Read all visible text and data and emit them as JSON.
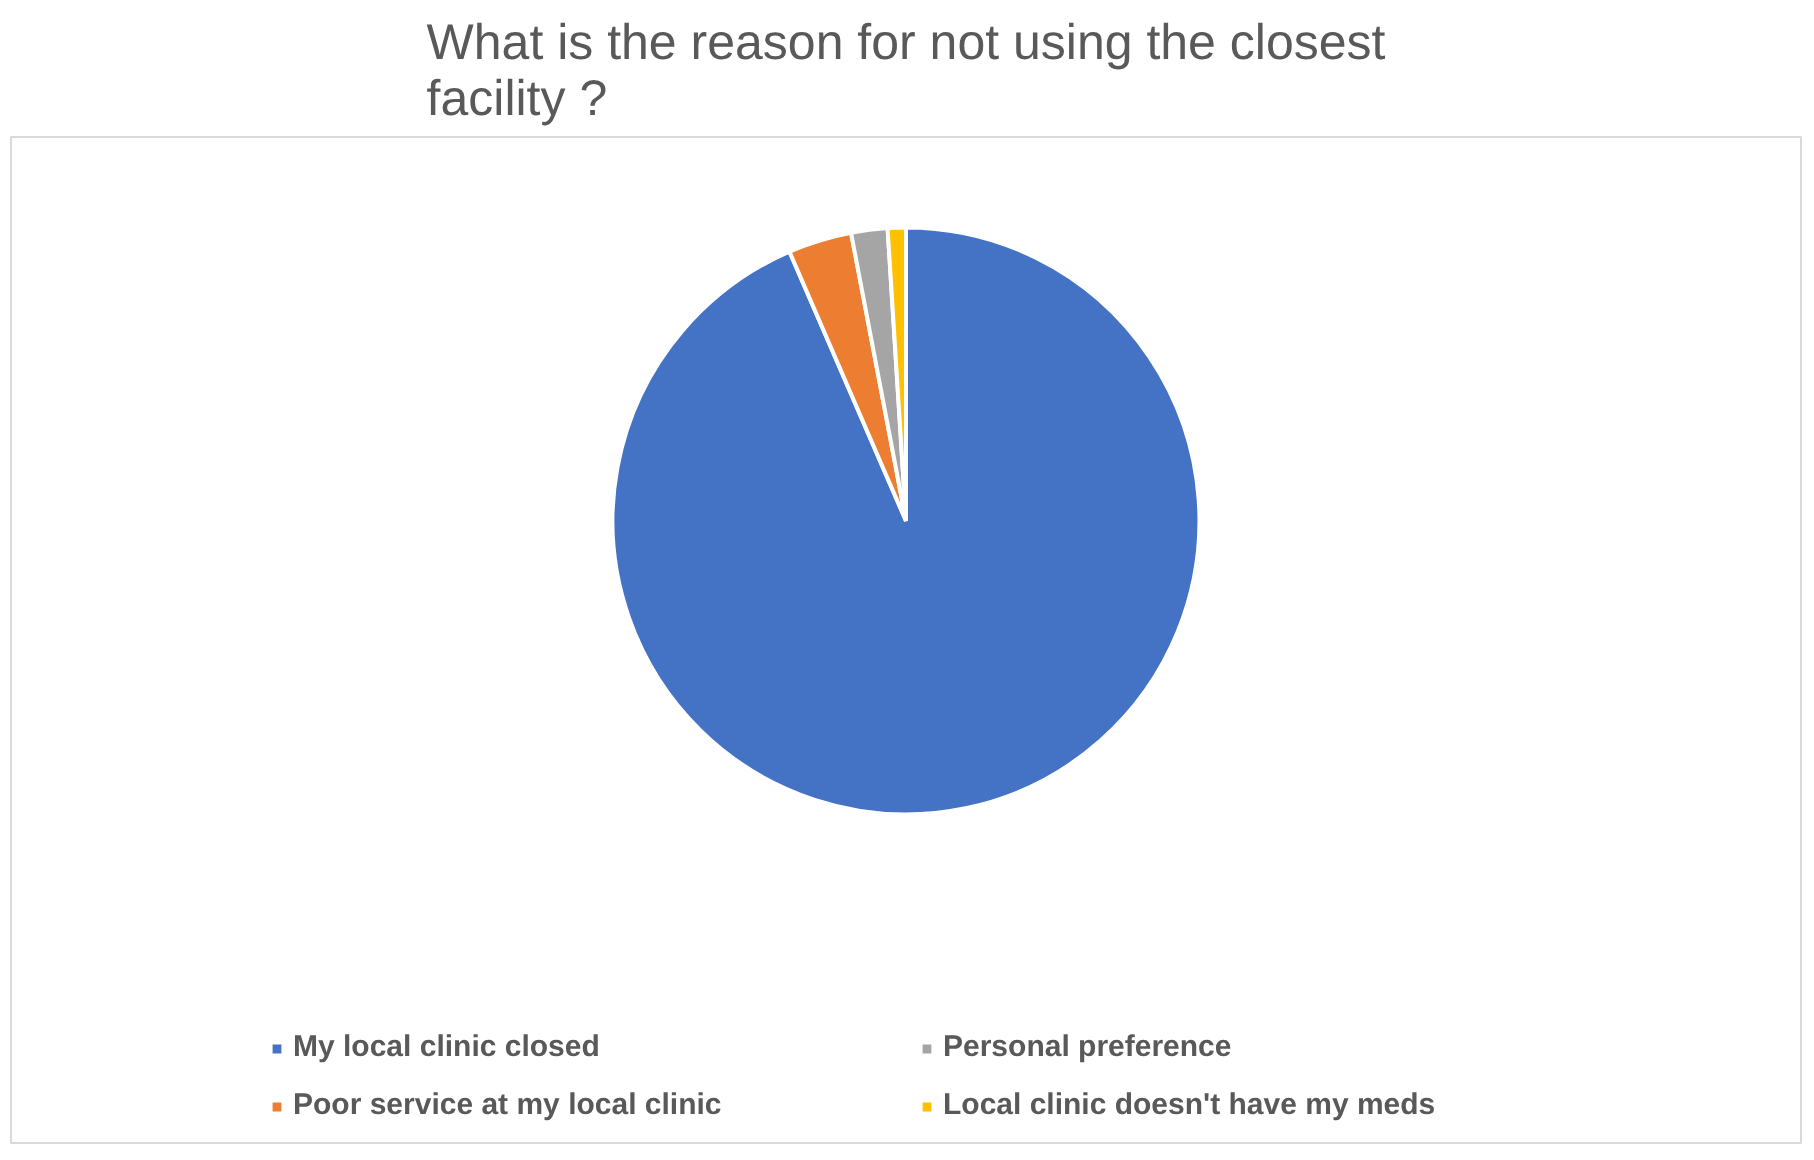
{
  "chart_data": {
    "type": "pie",
    "title": "What is the reason for not using the closest facility ?",
    "categories": [
      "My local clinic closed",
      "Poor service at my local clinic",
      "Personal preference",
      "Local clinic doesn't have my meds"
    ],
    "values": [
      93.5,
      3.5,
      2,
      1
    ],
    "colors": [
      "#4472c4",
      "#ed7d31",
      "#a5a5a5",
      "#ffc000"
    ],
    "legend": "bottom"
  }
}
